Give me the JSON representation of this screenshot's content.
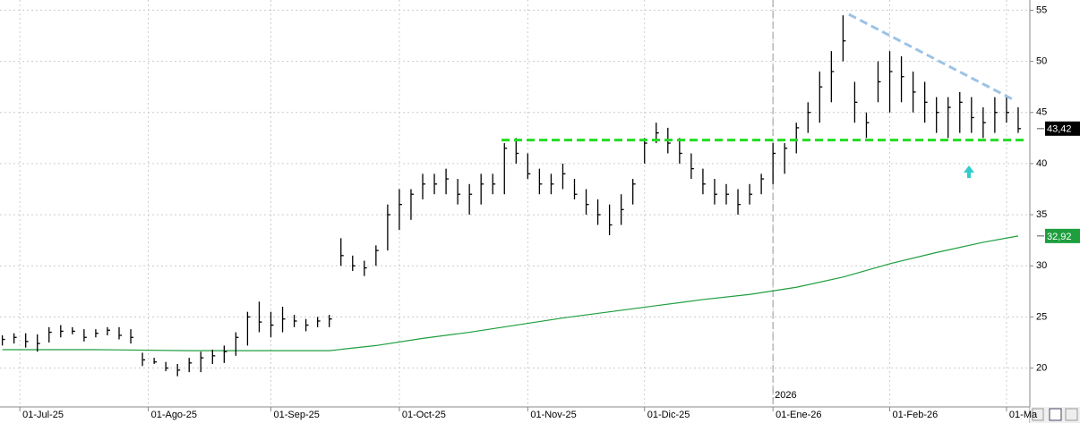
{
  "chart_data": {
    "type": "ohlc",
    "x": [
      0,
      2,
      4,
      6,
      8,
      10,
      12,
      14,
      16,
      18,
      20,
      22,
      24,
      26,
      28,
      30,
      32,
      34,
      36,
      38,
      40,
      42,
      44,
      46,
      48,
      50,
      52,
      54,
      56,
      58,
      60,
      62,
      64,
      66,
      68,
      70,
      72,
      74,
      76,
      78,
      80,
      82,
      84,
      86,
      88,
      90,
      92,
      94,
      96,
      98,
      100,
      102,
      104,
      106,
      108,
      110,
      112,
      114,
      116,
      118,
      120,
      122,
      124,
      126,
      128,
      130,
      132,
      134,
      136,
      138,
      140,
      142,
      144,
      146,
      148,
      150,
      152,
      154,
      156,
      158,
      160,
      162,
      164,
      166,
      168,
      170,
      172,
      174
    ],
    "high": [
      23.2,
      23.4,
      23.4,
      23.3,
      24,
      24.2,
      24,
      23.8,
      23.8,
      24,
      24,
      23.8,
      21.5,
      21,
      20.6,
      20.4,
      21,
      21.6,
      21.8,
      22.2,
      23.5,
      25.5,
      26.5,
      25.5,
      26,
      25.2,
      24.8,
      25,
      25.2,
      32.7,
      31,
      30.5,
      32,
      36,
      37.5,
      37.5,
      39,
      39,
      39.5,
      38.5,
      38,
      39,
      39,
      42,
      42.5,
      41,
      39.5,
      39,
      40,
      38.5,
      37.5,
      36.5,
      36,
      37,
      38.5,
      42.5,
      44,
      43.5,
      42.5,
      41,
      39.5,
      38.5,
      38,
      37.5,
      38,
      39,
      42,
      42,
      44,
      46,
      49,
      51,
      54.5,
      48,
      45,
      50,
      51,
      50.5,
      49,
      48,
      46.5,
      46.5,
      47,
      46.5,
      45.5,
      46.5,
      46.5,
      45.5
    ],
    "low": [
      22.2,
      22.4,
      22,
      21.6,
      22.5,
      23,
      23.3,
      22.6,
      23,
      23.2,
      22.8,
      22.4,
      20.2,
      20.4,
      19.7,
      19.2,
      19.6,
      19.6,
      20.4,
      20.5,
      21.2,
      22.2,
      23.5,
      23,
      23.5,
      24,
      23.6,
      24,
      24,
      30,
      29.5,
      29,
      30,
      31.5,
      33.5,
      34.5,
      36.5,
      37,
      37,
      36,
      35,
      36,
      37,
      37,
      40,
      38.5,
      37,
      37,
      37.5,
      36.5,
      35,
      34,
      33,
      34,
      36,
      40,
      42,
      41,
      40,
      38.5,
      37,
      36,
      36,
      35,
      36,
      37,
      38,
      39,
      41,
      43,
      44,
      46,
      50,
      44,
      42.5,
      46,
      45,
      46,
      45,
      44,
      43,
      42.5,
      43,
      43,
      42.5,
      43,
      44,
      43
    ],
    "close": [
      22.8,
      23,
      22.6,
      22.4,
      23.5,
      23.6,
      23.6,
      23,
      23.4,
      23.7,
      23.2,
      23,
      20.8,
      20.6,
      20,
      19.8,
      20.5,
      21,
      21.2,
      21.6,
      23,
      25,
      24.5,
      24.2,
      24.8,
      24.6,
      24.2,
      24.6,
      24.8,
      31,
      30,
      29.8,
      31.5,
      35,
      36,
      37,
      38,
      38,
      38.5,
      37,
      37,
      38,
      38,
      41.5,
      41,
      39,
      38,
      38,
      39,
      37,
      36,
      35,
      34,
      35.5,
      38,
      42,
      43,
      42,
      41,
      39.5,
      38,
      37,
      37,
      36,
      37,
      38.5,
      41,
      41.5,
      43.5,
      45,
      47.5,
      49,
      52,
      46,
      44,
      48,
      49,
      48.5,
      47,
      46,
      45,
      45.5,
      46,
      44.5,
      44,
      45,
      45,
      43.42
    ],
    "color": "#000000",
    "ma_x": [
      0,
      16,
      32,
      48,
      56,
      64,
      72,
      80,
      88,
      96,
      104,
      112,
      120,
      128,
      136,
      144,
      152,
      160,
      168,
      174
    ],
    "ma": [
      21.8,
      21.8,
      21.7,
      21.7,
      21.7,
      22.2,
      22.9,
      23.5,
      24.2,
      24.9,
      25.5,
      26.1,
      26.7,
      27.2,
      27.9,
      28.9,
      30.2,
      31.3,
      32.3,
      32.92
    ],
    "ma_color": "#1e9e3e",
    "lines": [
      {
        "x": [
          85.5,
          175.5
        ],
        "y": [
          42.3,
          42.3
        ],
        "color": "#22dd22"
      },
      {
        "x": [
          145,
          173
        ],
        "y": [
          54.6,
          46.3
        ],
        "color": "#9cc3e6"
      }
    ],
    "price_labels": [
      {
        "value": 43.42,
        "label": "43,42",
        "color": "#000000"
      },
      {
        "value": 32.92,
        "label": "32,92",
        "color": "#1e9e3e"
      }
    ],
    "year_label": {
      "x": 132,
      "label": "2026"
    },
    "xlim": [
      -0.4,
      176
    ],
    "ylim": [
      16.2,
      56
    ],
    "xticks": [
      {
        "value": 3,
        "label": "01-Jul-25"
      },
      {
        "value": 25,
        "label": "01-Ago-25"
      },
      {
        "value": 46,
        "label": "01-Sep-25"
      },
      {
        "value": 68,
        "label": "01-Oct-25"
      },
      {
        "value": 90,
        "label": "01-Nov-25"
      },
      {
        "value": 110,
        "label": "01-Dic-25"
      },
      {
        "value": 132,
        "label": "01-Ene-26"
      },
      {
        "value": 152,
        "label": "01-Feb-26"
      },
      {
        "value": 172,
        "label": "01-Ma"
      }
    ],
    "yticks": [
      20,
      25,
      30,
      35,
      40,
      45,
      50,
      55
    ],
    "grid": true
  }
}
